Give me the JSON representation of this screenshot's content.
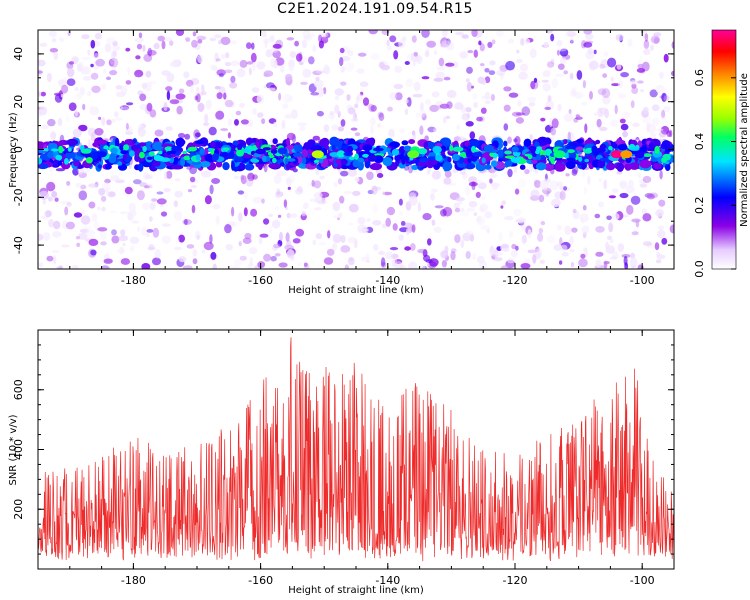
{
  "title": "C2E1.2024.191.09.54.R15",
  "chart_data": [
    {
      "type": "heatmap",
      "xlabel": "Height of straight line (km)",
      "ylabel": "Frequency (Hz)",
      "xlim": [
        -195,
        -95
      ],
      "ylim": [
        -50,
        50
      ],
      "xticks": [
        -180,
        -160,
        -140,
        -120,
        -100
      ],
      "yticks": [
        -40,
        -20,
        0,
        20,
        40
      ],
      "colorbar": {
        "label": "Normalized spectral amplitude",
        "range": [
          0,
          0.75
        ],
        "ticks": [
          "0.0",
          "0.2",
          "0.4",
          "0.6"
        ],
        "colormap": [
          "#ffffff",
          "#8a00e6",
          "#0000ff",
          "#00e5ff",
          "#00ff66",
          "#99ff00",
          "#ffff00",
          "#ff7f00",
          "#ff0000",
          "#ff0099"
        ]
      },
      "band_center_hz": -2,
      "band_halfwidth_hz": 5,
      "band_peaks": [
        {
          "x": -104,
          "value": 0.74
        },
        {
          "x": -102.5,
          "value": 0.6
        },
        {
          "x": -151,
          "value": 0.5
        },
        {
          "x": -136,
          "value": 0.45
        },
        {
          "x": -113,
          "value": 0.4
        }
      ]
    },
    {
      "type": "line",
      "xlabel": "Height of straight line (km)",
      "ylabel": "SNR (10 * v/v)",
      "xlim": [
        -195,
        -95
      ],
      "ylim": [
        0,
        800
      ],
      "xticks": [
        -180,
        -160,
        -140,
        -120,
        -100
      ],
      "yticks": [
        200,
        400,
        600
      ],
      "series_color": "#ee2a2a",
      "envelope": [
        {
          "x": -195,
          "y": 330
        },
        {
          "x": -185,
          "y": 380
        },
        {
          "x": -180,
          "y": 460
        },
        {
          "x": -175,
          "y": 380
        },
        {
          "x": -170,
          "y": 430
        },
        {
          "x": -165,
          "y": 480
        },
        {
          "x": -161,
          "y": 600
        },
        {
          "x": -157,
          "y": 720
        },
        {
          "x": -155,
          "y": 790
        },
        {
          "x": -152,
          "y": 640
        },
        {
          "x": -149,
          "y": 700
        },
        {
          "x": -145,
          "y": 730
        },
        {
          "x": -140,
          "y": 520
        },
        {
          "x": -136,
          "y": 640
        },
        {
          "x": -130,
          "y": 540
        },
        {
          "x": -125,
          "y": 420
        },
        {
          "x": -120,
          "y": 390
        },
        {
          "x": -115,
          "y": 450
        },
        {
          "x": -110,
          "y": 520
        },
        {
          "x": -104,
          "y": 640
        },
        {
          "x": -101,
          "y": 680
        },
        {
          "x": -98,
          "y": 330
        },
        {
          "x": -95,
          "y": 300
        }
      ]
    }
  ]
}
